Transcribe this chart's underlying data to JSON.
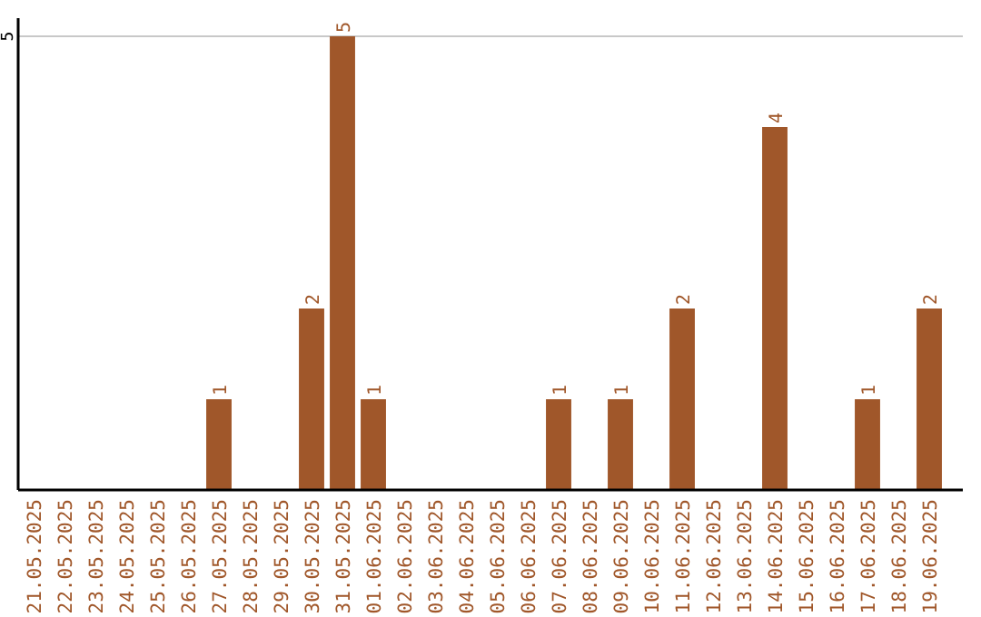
{
  "chart_data": {
    "type": "bar",
    "categories": [
      "21.05.2025",
      "22.05.2025",
      "23.05.2025",
      "24.05.2025",
      "25.05.2025",
      "26.05.2025",
      "27.05.2025",
      "28.05.2025",
      "29.05.2025",
      "30.05.2025",
      "31.05.2025",
      "01.06.2025",
      "02.06.2025",
      "03.06.2025",
      "04.06.2025",
      "05.06.2025",
      "06.06.2025",
      "07.06.2025",
      "08.06.2025",
      "09.06.2025",
      "10.06.2025",
      "11.06.2025",
      "12.06.2025",
      "13.06.2025",
      "14.06.2025",
      "15.06.2025",
      "16.06.2025",
      "17.06.2025",
      "18.06.2025",
      "19.06.2025"
    ],
    "values": [
      0,
      0,
      0,
      0,
      0,
      0,
      1,
      0,
      0,
      2,
      5,
      1,
      0,
      0,
      0,
      0,
      0,
      1,
      0,
      1,
      0,
      2,
      0,
      0,
      4,
      0,
      0,
      1,
      0,
      2
    ],
    "value_labels": [
      null,
      null,
      null,
      null,
      null,
      null,
      "1",
      null,
      null,
      "2",
      "5",
      "1",
      null,
      null,
      null,
      null,
      null,
      "1",
      null,
      "1",
      null,
      "2",
      null,
      null,
      "4",
      null,
      null,
      "1",
      null,
      "2"
    ],
    "color": "#a0572a",
    "ylim": [
      0,
      5
    ],
    "yticks": [
      5
    ],
    "ref_lines": [
      {
        "axis": "y",
        "value": 5,
        "color": "#c8c8c8"
      }
    ]
  }
}
